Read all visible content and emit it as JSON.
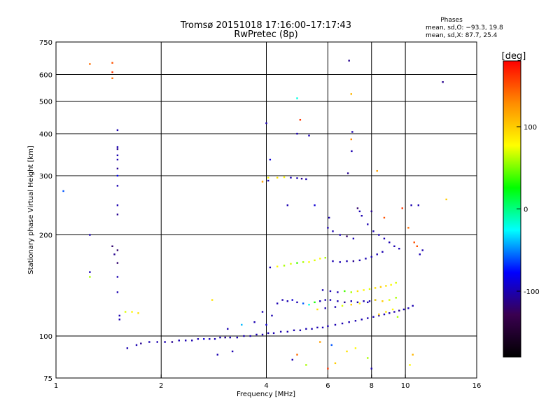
{
  "chart_data": {
    "type": "scatter",
    "title": "Tromsø 20151018 17:16:00–17:17:43",
    "subtitle": "RwPretec (8p)",
    "xlabel": "Frequency [MHz]",
    "ylabel": "Stationary phase Virtual Height [km]",
    "x_scale": "log",
    "y_scale": "log",
    "xlim": [
      1,
      16
    ],
    "ylim": [
      75,
      750
    ],
    "x_ticks": [
      1,
      2,
      4,
      6,
      8,
      10,
      16
    ],
    "y_ticks": [
      75,
      100,
      200,
      300,
      400,
      500,
      600,
      750
    ],
    "x_gridlines": [
      2,
      4,
      6,
      8,
      10
    ],
    "y_gridlines": [
      100,
      200,
      300,
      400,
      500,
      600
    ],
    "grid": true,
    "phases": {
      "heading": "Phases",
      "line_o": "mean, sd,O: −93.3, 19.8",
      "line_x": "mean, sd,X:  87.7, 25.4"
    },
    "colorbar": {
      "label": "[deg]",
      "ticks": [
        100,
        0,
        -100
      ],
      "range": [
        -180,
        180
      ],
      "colors_top_to_bottom": [
        "#ff0000",
        "#ff8c00",
        "#ffff00",
        "#00ff00",
        "#00ffff",
        "#0000ff",
        "#3a0050",
        "#000000"
      ]
    },
    "series": [
      {
        "name": "",
        "points": [
          [
            1.05,
            270,
            -60
          ],
          [
            1.25,
            200,
            -100
          ],
          [
            1.25,
            155,
            -100
          ],
          [
            1.25,
            150,
            60
          ],
          [
            1.25,
            645,
            140
          ],
          [
            1.45,
            650,
            150
          ],
          [
            1.45,
            610,
            160
          ],
          [
            1.45,
            585,
            140
          ],
          [
            1.45,
            185,
            -120
          ],
          [
            1.47,
            175,
            -110
          ],
          [
            1.5,
            410,
            -100
          ],
          [
            1.5,
            365,
            -100
          ],
          [
            1.5,
            360,
            -110
          ],
          [
            1.5,
            345,
            -100
          ],
          [
            1.5,
            335,
            -100
          ],
          [
            1.5,
            315,
            -110
          ],
          [
            1.5,
            300,
            -80
          ],
          [
            1.5,
            280,
            -100
          ],
          [
            1.5,
            245,
            -100
          ],
          [
            1.5,
            230,
            -110
          ],
          [
            1.5,
            180,
            -120
          ],
          [
            1.5,
            165,
            -120
          ],
          [
            1.5,
            150,
            -100
          ],
          [
            1.5,
            135,
            -100
          ],
          [
            1.52,
            115,
            -100
          ],
          [
            1.52,
            112,
            -100
          ],
          [
            1.58,
            118,
            70
          ],
          [
            1.65,
            118,
            80
          ],
          [
            1.72,
            117,
            90
          ],
          [
            1.6,
            92,
            -100
          ],
          [
            1.7,
            94,
            -100
          ],
          [
            1.75,
            95,
            -110
          ],
          [
            1.85,
            96,
            -100
          ],
          [
            1.95,
            96,
            -100
          ],
          [
            2.05,
            96,
            -100
          ],
          [
            2.15,
            96,
            -110
          ],
          [
            2.25,
            97,
            -100
          ],
          [
            2.35,
            97,
            -100
          ],
          [
            2.45,
            97,
            -100
          ],
          [
            2.55,
            98,
            -100
          ],
          [
            2.65,
            98,
            -90
          ],
          [
            2.75,
            98,
            -100
          ],
          [
            2.85,
            98,
            -100
          ],
          [
            2.95,
            99,
            -100
          ],
          [
            3.05,
            99,
            -110
          ],
          [
            3.15,
            99,
            -100
          ],
          [
            3.3,
            99,
            -100
          ],
          [
            3.45,
            100,
            -100
          ],
          [
            3.6,
            100,
            -100
          ],
          [
            3.75,
            101,
            -100
          ],
          [
            3.9,
            101,
            -100
          ],
          [
            4.05,
            102,
            -100
          ],
          [
            4.2,
            102,
            -100
          ],
          [
            4.4,
            103,
            -100
          ],
          [
            4.6,
            103,
            -100
          ],
          [
            4.8,
            104,
            -100
          ],
          [
            5.0,
            104,
            -100
          ],
          [
            5.2,
            105,
            -100
          ],
          [
            5.4,
            105,
            -100
          ],
          [
            5.6,
            106,
            -100
          ],
          [
            5.8,
            106,
            -100
          ],
          [
            6.0,
            107,
            -100
          ],
          [
            6.3,
            108,
            -100
          ],
          [
            6.6,
            109,
            -100
          ],
          [
            6.9,
            110,
            -100
          ],
          [
            7.2,
            111,
            -100
          ],
          [
            7.5,
            112,
            -100
          ],
          [
            7.8,
            113,
            -100
          ],
          [
            8.1,
            114,
            -100
          ],
          [
            8.4,
            115,
            -100
          ],
          [
            8.7,
            116,
            -100
          ],
          [
            9.0,
            117,
            -100
          ],
          [
            9.3,
            118,
            -100
          ],
          [
            9.6,
            119,
            -110
          ],
          [
            9.9,
            120,
            -100
          ],
          [
            10.2,
            121,
            -100
          ],
          [
            10.5,
            123,
            -100
          ],
          [
            2.8,
            128,
            90
          ],
          [
            3.1,
            105,
            -100
          ],
          [
            3.4,
            108,
            -40
          ],
          [
            3.7,
            110,
            -100
          ],
          [
            3.9,
            118,
            -100
          ],
          [
            4.0,
            108,
            -90
          ],
          [
            4.15,
            115,
            -100
          ],
          [
            4.3,
            125,
            -100
          ],
          [
            4.45,
            128,
            -100
          ],
          [
            4.6,
            127,
            -100
          ],
          [
            4.75,
            128,
            -90
          ],
          [
            4.9,
            126,
            -100
          ],
          [
            5.1,
            125,
            -60
          ],
          [
            5.3,
            124,
            -20
          ],
          [
            5.5,
            126,
            30
          ],
          [
            5.7,
            127,
            -100
          ],
          [
            5.9,
            128,
            -100
          ],
          [
            6.1,
            128,
            -100
          ],
          [
            6.4,
            127,
            -100
          ],
          [
            6.7,
            126,
            -110
          ],
          [
            7.0,
            127,
            -100
          ],
          [
            7.3,
            126,
            -100
          ],
          [
            7.6,
            127,
            -100
          ],
          [
            7.9,
            127,
            -100
          ],
          [
            8.2,
            128,
            -100
          ],
          [
            4.1,
            160,
            -100
          ],
          [
            4.3,
            161,
            80
          ],
          [
            4.5,
            162,
            60
          ],
          [
            4.7,
            164,
            70
          ],
          [
            4.9,
            165,
            40
          ],
          [
            5.1,
            166,
            60
          ],
          [
            5.3,
            166,
            80
          ],
          [
            5.5,
            168,
            70
          ],
          [
            5.7,
            170,
            80
          ],
          [
            5.9,
            171,
            60
          ],
          [
            6.2,
            167,
            -100
          ],
          [
            6.5,
            166,
            -100
          ],
          [
            6.8,
            167,
            -100
          ],
          [
            7.1,
            167,
            -110
          ],
          [
            7.4,
            168,
            -100
          ],
          [
            7.7,
            170,
            -100
          ],
          [
            8.0,
            172,
            -100
          ],
          [
            8.3,
            175,
            -100
          ],
          [
            8.6,
            178,
            -100
          ],
          [
            4.05,
            296,
            80
          ],
          [
            4.3,
            296,
            90
          ],
          [
            4.5,
            297,
            80
          ],
          [
            4.7,
            296,
            -100
          ],
          [
            4.9,
            295,
            -100
          ],
          [
            5.05,
            294,
            -110
          ],
          [
            5.2,
            293,
            -100
          ],
          [
            5.8,
            137,
            -100
          ],
          [
            6.1,
            136,
            -100
          ],
          [
            6.4,
            135,
            -100
          ],
          [
            6.7,
            136,
            40
          ],
          [
            7.0,
            135,
            60
          ],
          [
            7.3,
            136,
            90
          ],
          [
            7.6,
            137,
            80
          ],
          [
            7.9,
            138,
            70
          ],
          [
            8.2,
            139,
            90
          ],
          [
            8.5,
            140,
            100
          ],
          [
            8.8,
            141,
            90
          ],
          [
            9.1,
            142,
            80
          ],
          [
            9.4,
            144,
            70
          ],
          [
            5.6,
            120,
            90
          ],
          [
            5.9,
            121,
            -100
          ],
          [
            6.3,
            122,
            -100
          ],
          [
            6.6,
            123,
            70
          ],
          [
            7.0,
            124,
            100
          ],
          [
            7.4,
            125,
            80
          ],
          [
            7.8,
            126,
            -100
          ],
          [
            8.2,
            128,
            90
          ],
          [
            8.6,
            127,
            100
          ],
          [
            9.0,
            128,
            70
          ],
          [
            9.2,
            120,
            80
          ],
          [
            8.8,
            118,
            90
          ],
          [
            8.4,
            116,
            100
          ],
          [
            9.4,
            130,
            60
          ],
          [
            9.5,
            114,
            60
          ],
          [
            6.0,
            210,
            -100
          ],
          [
            6.2,
            205,
            -100
          ],
          [
            6.5,
            200,
            -100
          ],
          [
            6.8,
            198,
            -120
          ],
          [
            7.1,
            195,
            -100
          ],
          [
            7.3,
            240,
            -120
          ],
          [
            7.4,
            235,
            -100
          ],
          [
            7.5,
            228,
            -100
          ],
          [
            7.8,
            215,
            -100
          ],
          [
            8.1,
            205,
            -100
          ],
          [
            8.4,
            200,
            -100
          ],
          [
            8.7,
            195,
            -100
          ],
          [
            9.0,
            190,
            -100
          ],
          [
            9.3,
            185,
            -100
          ],
          [
            9.6,
            182,
            -100
          ],
          [
            9.8,
            240,
            160
          ],
          [
            10.2,
            210,
            140
          ],
          [
            10.6,
            190,
            150
          ],
          [
            10.4,
            245,
            -100
          ],
          [
            10.9,
            245,
            -100
          ],
          [
            6.9,
            660,
            -110
          ],
          [
            7.0,
            525,
            110
          ],
          [
            7.05,
            405,
            -100
          ],
          [
            7.0,
            385,
            130
          ],
          [
            7.02,
            355,
            -100
          ],
          [
            4.9,
            510,
            -20
          ],
          [
            5.0,
            440,
            160
          ],
          [
            4.9,
            400,
            -100
          ],
          [
            5.3,
            395,
            -100
          ],
          [
            4.0,
            430,
            -100
          ],
          [
            4.1,
            335,
            -90
          ],
          [
            6.85,
            305,
            -110
          ],
          [
            8.3,
            310,
            120
          ],
          [
            12.8,
            570,
            -110
          ],
          [
            13.1,
            255,
            100
          ],
          [
            10.8,
            185,
            150
          ],
          [
            11.0,
            175,
            -100
          ],
          [
            11.2,
            180,
            -100
          ],
          [
            10.5,
            88,
            110
          ],
          [
            10.3,
            82,
            80
          ],
          [
            6.0,
            80,
            160
          ],
          [
            6.3,
            83,
            100
          ],
          [
            6.8,
            90,
            90
          ],
          [
            7.2,
            92,
            80
          ],
          [
            7.8,
            86,
            60
          ],
          [
            8.0,
            80,
            -100
          ],
          [
            4.75,
            85,
            -100
          ],
          [
            4.9,
            88,
            140
          ],
          [
            5.2,
            82,
            60
          ],
          [
            5.7,
            96,
            120
          ],
          [
            6.15,
            94,
            -60
          ],
          [
            3.2,
            90,
            -100
          ],
          [
            2.9,
            88,
            -100
          ],
          [
            4.6,
            245,
            -100
          ],
          [
            5.5,
            245,
            -90
          ],
          [
            6.05,
            225,
            -100
          ],
          [
            3.9,
            288,
            120
          ],
          [
            4.05,
            290,
            -100
          ],
          [
            8.0,
            235,
            -110
          ],
          [
            8.7,
            225,
            150
          ]
        ]
      }
    ]
  }
}
